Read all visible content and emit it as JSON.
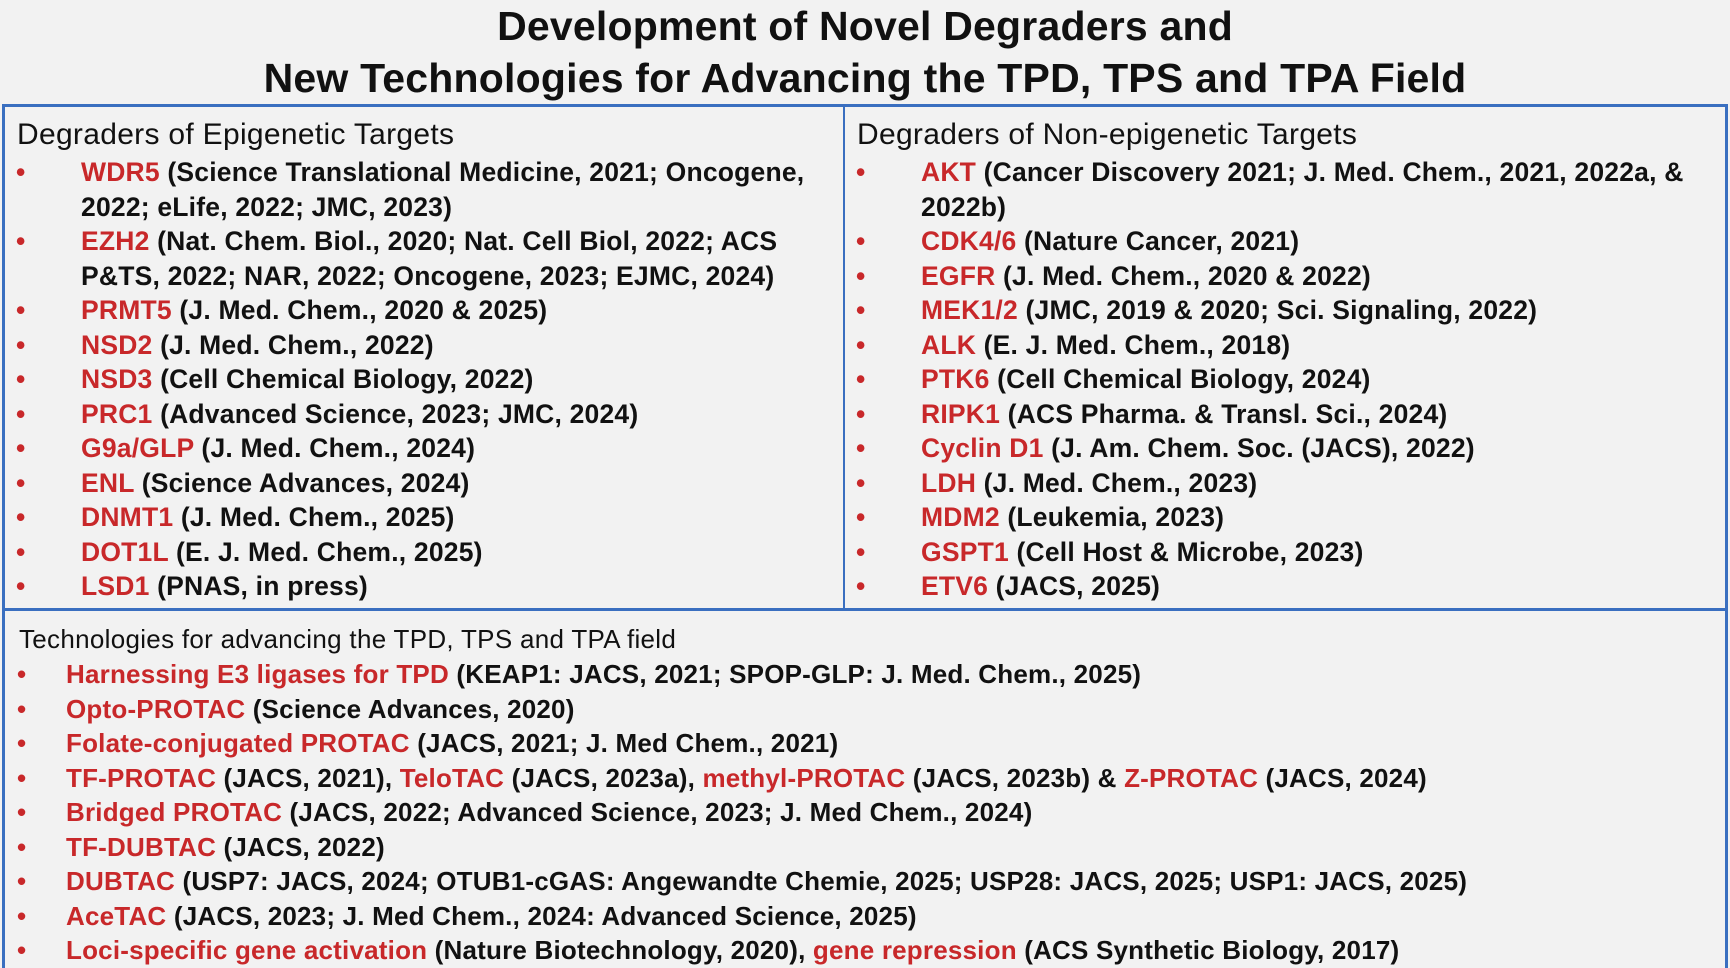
{
  "title": {
    "line1": "Development of Novel Degraders and",
    "line2": "New Technologies for Advancing the TPD, TPS and TPA Field"
  },
  "colors": {
    "accent_red": "#c8282a",
    "border_blue": "#3a6fc0",
    "background": "#f2f2f2"
  },
  "bullet": "•",
  "epigenetic": {
    "heading": "Degraders of Epigenetic Targets",
    "items": [
      {
        "target": "WDR5",
        "refs": " (Science Translational Medicine, 2021; Oncogene, 2022; eLife, 2022; JMC, 2023)"
      },
      {
        "target": "EZH2",
        "refs": " (Nat. Chem. Biol., 2020; Nat. Cell Biol, 2022; ACS P&TS, 2022; NAR, 2022; Oncogene, 2023; EJMC, 2024)"
      },
      {
        "target": "PRMT5",
        "refs": " (J. Med. Chem., 2020 & 2025)"
      },
      {
        "target": "NSD2",
        "refs": " (J. Med. Chem., 2022)"
      },
      {
        "target": "NSD3",
        "refs": " (Cell Chemical Biology, 2022)"
      },
      {
        "target": "PRC1",
        "refs": " (Advanced Science, 2023; JMC, 2024)"
      },
      {
        "target": "G9a/GLP",
        "refs": " (J. Med. Chem., 2024)"
      },
      {
        "target": "ENL",
        "refs": " (Science Advances, 2024)"
      },
      {
        "target": "DNMT1",
        "refs": " (J. Med. Chem., 2025)"
      },
      {
        "target": "DOT1L",
        "refs": " (E. J. Med. Chem., 2025)"
      },
      {
        "target": "LSD1",
        "refs": " (PNAS, in press)"
      }
    ]
  },
  "non_epigenetic": {
    "heading": "Degraders of Non-epigenetic Targets",
    "items": [
      {
        "target": "AKT",
        "refs": " (Cancer Discovery 2021; J. Med. Chem., 2021, 2022a, & 2022b)"
      },
      {
        "target": "CDK4/6",
        "refs": " (Nature Cancer, 2021)"
      },
      {
        "target": "EGFR",
        "refs": " (J. Med. Chem., 2020 & 2022)"
      },
      {
        "target": "MEK1/2",
        "refs": " (JMC, 2019 & 2020; Sci. Signaling, 2022)"
      },
      {
        "target": "ALK",
        "refs": " (E. J. Med. Chem., 2018)"
      },
      {
        "target": "PTK6",
        "refs": " (Cell Chemical Biology, 2024)"
      },
      {
        "target": "RIPK1",
        "refs": " (ACS Pharma. & Transl. Sci., 2024)"
      },
      {
        "target": "Cyclin D1",
        "refs": " (J. Am. Chem. Soc. (JACS), 2022)"
      },
      {
        "target": "LDH",
        "refs": " (J. Med. Chem., 2023)"
      },
      {
        "target": "MDM2",
        "refs": " (Leukemia, 2023)"
      },
      {
        "target": "GSPT1",
        "refs": " (Cell Host & Microbe, 2023)"
      },
      {
        "target": "ETV6",
        "refs": " (JACS, 2025)"
      }
    ]
  },
  "technologies": {
    "heading": "Technologies for advancing the TPD, TPS and TPA field",
    "items": [
      {
        "segments": [
          {
            "text": "Harnessing E3 ligases for TPD",
            "red": true
          },
          {
            "text": " (KEAP1: JACS, 2021; SPOP-GLP: J. Med. Chem., 2025)",
            "red": false
          }
        ]
      },
      {
        "segments": [
          {
            "text": "Opto-PROTAC",
            "red": true
          },
          {
            "text": " (Science Advances, 2020)",
            "red": false
          }
        ]
      },
      {
        "segments": [
          {
            "text": "Folate-conjugated PROTAC",
            "red": true
          },
          {
            "text": " (JACS, 2021; J. Med Chem., 2021)",
            "red": false
          }
        ]
      },
      {
        "segments": [
          {
            "text": "TF-PROTAC",
            "red": true
          },
          {
            "text": " (JACS, 2021), ",
            "red": false
          },
          {
            "text": "TeloTAC",
            "red": true
          },
          {
            "text": " (JACS, 2023a), ",
            "red": false
          },
          {
            "text": "methyl-PROTAC",
            "red": true
          },
          {
            "text": " (JACS, 2023b) & ",
            "red": false
          },
          {
            "text": "Z-PROTAC",
            "red": true
          },
          {
            "text": " (JACS, 2024)",
            "red": false
          }
        ]
      },
      {
        "segments": [
          {
            "text": "Bridged PROTAC",
            "red": true
          },
          {
            "text": " (JACS, 2022; Advanced Science, 2023; J. Med Chem., 2024)",
            "red": false
          }
        ]
      },
      {
        "segments": [
          {
            "text": "TF-DUBTAC",
            "red": true
          },
          {
            "text": " (JACS, 2022)",
            "red": false
          }
        ]
      },
      {
        "segments": [
          {
            "text": "DUBTAC",
            "red": true
          },
          {
            "text": " (USP7: JACS, 2024; OTUB1-cGAS: Angewandte Chemie, 2025; USP28: JACS, 2025; USP1: JACS, 2025)",
            "red": false
          }
        ]
      },
      {
        "segments": [
          {
            "text": "AceTAC",
            "red": true
          },
          {
            "text": " (JACS, 2023; J. Med Chem., 2024: Advanced Science, 2025)",
            "red": false
          }
        ]
      },
      {
        "segments": [
          {
            "text": "Loci-specific gene activation",
            "red": true
          },
          {
            "text": " (Nature Biotechnology, 2020), ",
            "red": false
          },
          {
            "text": "gene repression",
            "red": true
          },
          {
            "text": " (ACS Synthetic Biology, 2017)",
            "red": false
          }
        ]
      }
    ]
  }
}
